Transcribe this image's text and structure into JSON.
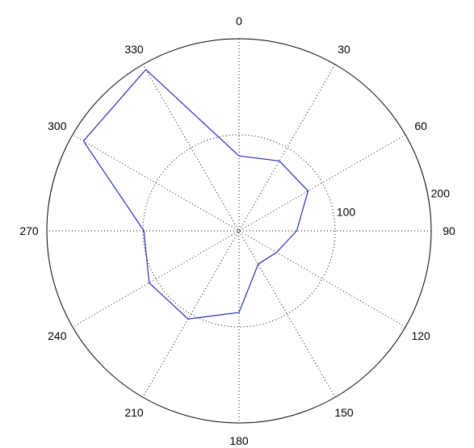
{
  "chart_data": {
    "type": "polar-line",
    "theta_direction": "clockwise",
    "theta_zero": "top",
    "theta_labels": [
      "0",
      "30",
      "60",
      "90",
      "120",
      "150",
      "180",
      "210",
      "240",
      "270",
      "300",
      "330"
    ],
    "r_tick_labels": [
      "100",
      "200"
    ],
    "r_ticks": [
      100,
      200
    ],
    "rlim": [
      0,
      200
    ],
    "grid": true,
    "series": [
      {
        "color": "#2a2ab8",
        "points": [
          {
            "theta": 0,
            "r": 78
          },
          {
            "theta": 30,
            "r": 84
          },
          {
            "theta": 60,
            "r": 83
          },
          {
            "theta": 90,
            "r": 60
          },
          {
            "theta": 120,
            "r": 45
          },
          {
            "theta": 150,
            "r": 40
          },
          {
            "theta": 180,
            "r": 85
          },
          {
            "theta": 210,
            "r": 106
          },
          {
            "theta": 240,
            "r": 108
          },
          {
            "theta": 270,
            "r": 99
          },
          {
            "theta": 300,
            "r": 187
          },
          {
            "theta": 330,
            "r": 194
          },
          {
            "theta": 360,
            "r": 78
          }
        ]
      }
    ]
  }
}
